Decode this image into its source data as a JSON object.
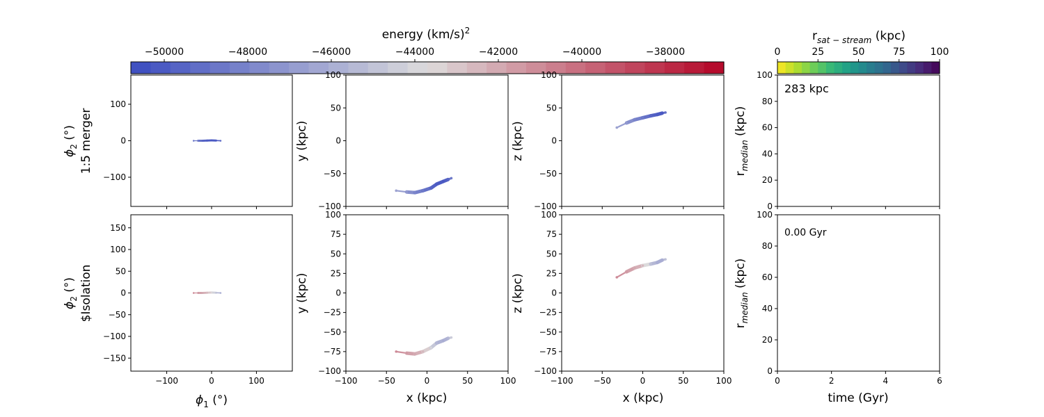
{
  "colors": {
    "energy_colormap": "coolwarm",
    "cmap_low": "#3b4cc0",
    "cmap_mid": "#dddcdc",
    "cmap_high": "#b40426",
    "sep_colormap": "viridis_r"
  },
  "energy_colorbar": {
    "label_main": "energy (km/s)",
    "label_sup": "2",
    "ticks": [
      "−50000",
      "−48000",
      "−46000",
      "−44000",
      "−42000",
      "−40000",
      "−38000"
    ],
    "tick_values": [
      -50000,
      -48000,
      -46000,
      -44000,
      -42000,
      -40000,
      -38000
    ],
    "range": [
      -50800,
      -36600
    ],
    "levels": 30
  },
  "sep_colorbar": {
    "label_main": "r",
    "label_sub": "sat − stream",
    "label_unit": " (kpc)",
    "ticks": [
      "0",
      "25",
      "50",
      "75",
      "100"
    ],
    "tick_values": [
      0,
      25,
      50,
      75,
      100
    ],
    "range": [
      0,
      100
    ],
    "levels": 20
  },
  "rows": [
    {
      "row_label": "1:5 merger",
      "phi2_label": "ϕ",
      "phi2_sub": "2",
      "phi2_unit": " (°)",
      "sky_yticks": [
        "100",
        "0",
        "−100"
      ],
      "sky_ytick_values": [
        100,
        0,
        -100
      ],
      "annotation": "283 kpc"
    },
    {
      "row_label": "$Isolation",
      "phi2_label": "ϕ",
      "phi2_sub": "2",
      "phi2_unit": " (°)",
      "sky_yticks": [
        "150",
        "100",
        "50",
        "0",
        "−50",
        "−100",
        "−150"
      ],
      "sky_ytick_values": [
        150,
        100,
        50,
        0,
        -50,
        -100,
        -150
      ],
      "annotation": "0.00 Gyr"
    }
  ],
  "axes_text": {
    "xy_ylabel": "y (kpc)",
    "xz_ylabel": "z (kpc)",
    "x_label": "x (kpc)",
    "phi1_label": "ϕ",
    "phi1_sub": "1",
    "phi1_unit": " (°)",
    "rmed_label": "r",
    "rmed_sub": "median",
    "rmed_unit": " (kpc)",
    "time_label": "time (Gyr)",
    "sky_xticks": [
      "−100",
      "0",
      "100"
    ],
    "sky_xtick_values": [
      -100,
      0,
      100
    ],
    "pos_ticks_top": [
      "100",
      "50",
      "0",
      "−50",
      "−100"
    ],
    "pos_tick_values_top": [
      100,
      50,
      0,
      -50,
      -100
    ],
    "pos_ticks_bottom": [
      "100",
      "75",
      "50",
      "25",
      "0",
      "−25",
      "−50",
      "−75",
      "−100"
    ],
    "pos_tick_values_bottom": [
      100,
      75,
      50,
      25,
      0,
      -25,
      -50,
      -75,
      -100
    ],
    "pos_xticks": [
      "−100",
      "−50",
      "0",
      "50",
      "100"
    ],
    "pos_xtick_values": [
      -100,
      -50,
      0,
      50,
      100
    ],
    "rmed_yticks": [
      "100",
      "80",
      "60",
      "40",
      "20",
      "0"
    ],
    "rmed_ytick_values": [
      100,
      80,
      60,
      40,
      20,
      0
    ],
    "time_xticks": [
      "0",
      "2",
      "4",
      "6"
    ],
    "time_xtick_values": [
      0,
      2,
      4,
      6
    ]
  },
  "chart_data": [
    {
      "type": "scatter",
      "panel": "sky-merger",
      "xlabel": "",
      "ylabel": "ϕ2 (°) 1:5 merger",
      "xlim": [
        -180,
        180
      ],
      "ylim": [
        -180,
        180
      ],
      "points": [
        {
          "x": -40,
          "y": 0,
          "e": -48500
        },
        {
          "x": -30,
          "y": 0,
          "e": -48500
        },
        {
          "x": -20,
          "y": 0,
          "e": -49500
        },
        {
          "x": -10,
          "y": 0.5,
          "e": -50000
        },
        {
          "x": 0,
          "y": 1,
          "e": -50200
        },
        {
          "x": 10,
          "y": 0.5,
          "e": -50000
        },
        {
          "x": 20,
          "y": 0,
          "e": -49500
        }
      ]
    },
    {
      "type": "scatter",
      "panel": "xy-merger",
      "xlabel": "",
      "ylabel": "y (kpc)",
      "xlim": [
        -100,
        100
      ],
      "ylim": [
        -100,
        100
      ],
      "points": [
        {
          "x": -38,
          "y": -76,
          "e": -46500
        },
        {
          "x": -25,
          "y": -78,
          "e": -47000
        },
        {
          "x": -15,
          "y": -79,
          "e": -48000
        },
        {
          "x": -5,
          "y": -76,
          "e": -48500
        },
        {
          "x": 5,
          "y": -72,
          "e": -49500
        },
        {
          "x": 12,
          "y": -66,
          "e": -50000
        },
        {
          "x": 20,
          "y": -62,
          "e": -50200
        },
        {
          "x": 26,
          "y": -59,
          "e": -49500
        },
        {
          "x": 30,
          "y": -57,
          "e": -48500
        }
      ]
    },
    {
      "type": "scatter",
      "panel": "xz-merger",
      "xlabel": "",
      "ylabel": "z (kpc)",
      "xlim": [
        -100,
        100
      ],
      "ylim": [
        -100,
        100
      ],
      "points": [
        {
          "x": -32,
          "y": 20,
          "e": -46500
        },
        {
          "x": -20,
          "y": 27,
          "e": -47000
        },
        {
          "x": -10,
          "y": 32,
          "e": -48000
        },
        {
          "x": 0,
          "y": 35,
          "e": -48500
        },
        {
          "x": 10,
          "y": 38,
          "e": -49500
        },
        {
          "x": 18,
          "y": 40,
          "e": -50000
        },
        {
          "x": 24,
          "y": 42,
          "e": -50200
        },
        {
          "x": 28,
          "y": 43,
          "e": -49000
        }
      ]
    },
    {
      "type": "line",
      "panel": "rmed-merger",
      "xlabel": "",
      "ylabel": "rmedian (kpc)",
      "xlim": [
        0,
        6
      ],
      "ylim": [
        0,
        100
      ],
      "series": []
    },
    {
      "type": "scatter",
      "panel": "sky-isolation",
      "xlabel": "ϕ1 (°)",
      "ylabel": "ϕ2 (°) $Isolation",
      "xlim": [
        -180,
        180
      ],
      "ylim": [
        -180,
        180
      ],
      "points": [
        {
          "x": -40,
          "y": 0,
          "e": -41000
        },
        {
          "x": -30,
          "y": 0,
          "e": -41500
        },
        {
          "x": -20,
          "y": 0,
          "e": -42000
        },
        {
          "x": -10,
          "y": 0.5,
          "e": -42500
        },
        {
          "x": 0,
          "y": 1,
          "e": -43500
        },
        {
          "x": 10,
          "y": 0.5,
          "e": -45000
        },
        {
          "x": 20,
          "y": 0,
          "e": -46000
        }
      ]
    },
    {
      "type": "scatter",
      "panel": "xy-isolation",
      "xlabel": "x (kpc)",
      "ylabel": "y (kpc)",
      "xlim": [
        -100,
        100
      ],
      "ylim": [
        -100,
        100
      ],
      "points": [
        {
          "x": -38,
          "y": -75,
          "e": -41000
        },
        {
          "x": -25,
          "y": -77,
          "e": -41500
        },
        {
          "x": -15,
          "y": -78,
          "e": -42000
        },
        {
          "x": -5,
          "y": -75,
          "e": -42500
        },
        {
          "x": 5,
          "y": -70,
          "e": -44000
        },
        {
          "x": 12,
          "y": -64,
          "e": -45500
        },
        {
          "x": 20,
          "y": -61,
          "e": -46000
        },
        {
          "x": 26,
          "y": -58,
          "e": -45500
        },
        {
          "x": 30,
          "y": -57,
          "e": -44500
        }
      ]
    },
    {
      "type": "scatter",
      "panel": "xz-isolation",
      "xlabel": "x (kpc)",
      "ylabel": "z (kpc)",
      "xlim": [
        -100,
        100
      ],
      "ylim": [
        -100,
        100
      ],
      "points": [
        {
          "x": -32,
          "y": 20,
          "e": -41000
        },
        {
          "x": -20,
          "y": 27,
          "e": -41500
        },
        {
          "x": -10,
          "y": 32,
          "e": -42000
        },
        {
          "x": 0,
          "y": 35,
          "e": -42500
        },
        {
          "x": 10,
          "y": 37,
          "e": -45000
        },
        {
          "x": 18,
          "y": 39,
          "e": -46000
        },
        {
          "x": 24,
          "y": 42,
          "e": -46000
        },
        {
          "x": 28,
          "y": 43,
          "e": -45000
        }
      ]
    },
    {
      "type": "line",
      "panel": "rmed-isolation",
      "xlabel": "time (Gyr)",
      "ylabel": "rmedian (kpc)",
      "xlim": [
        0,
        6
      ],
      "ylim": [
        0,
        100
      ],
      "series": []
    }
  ]
}
